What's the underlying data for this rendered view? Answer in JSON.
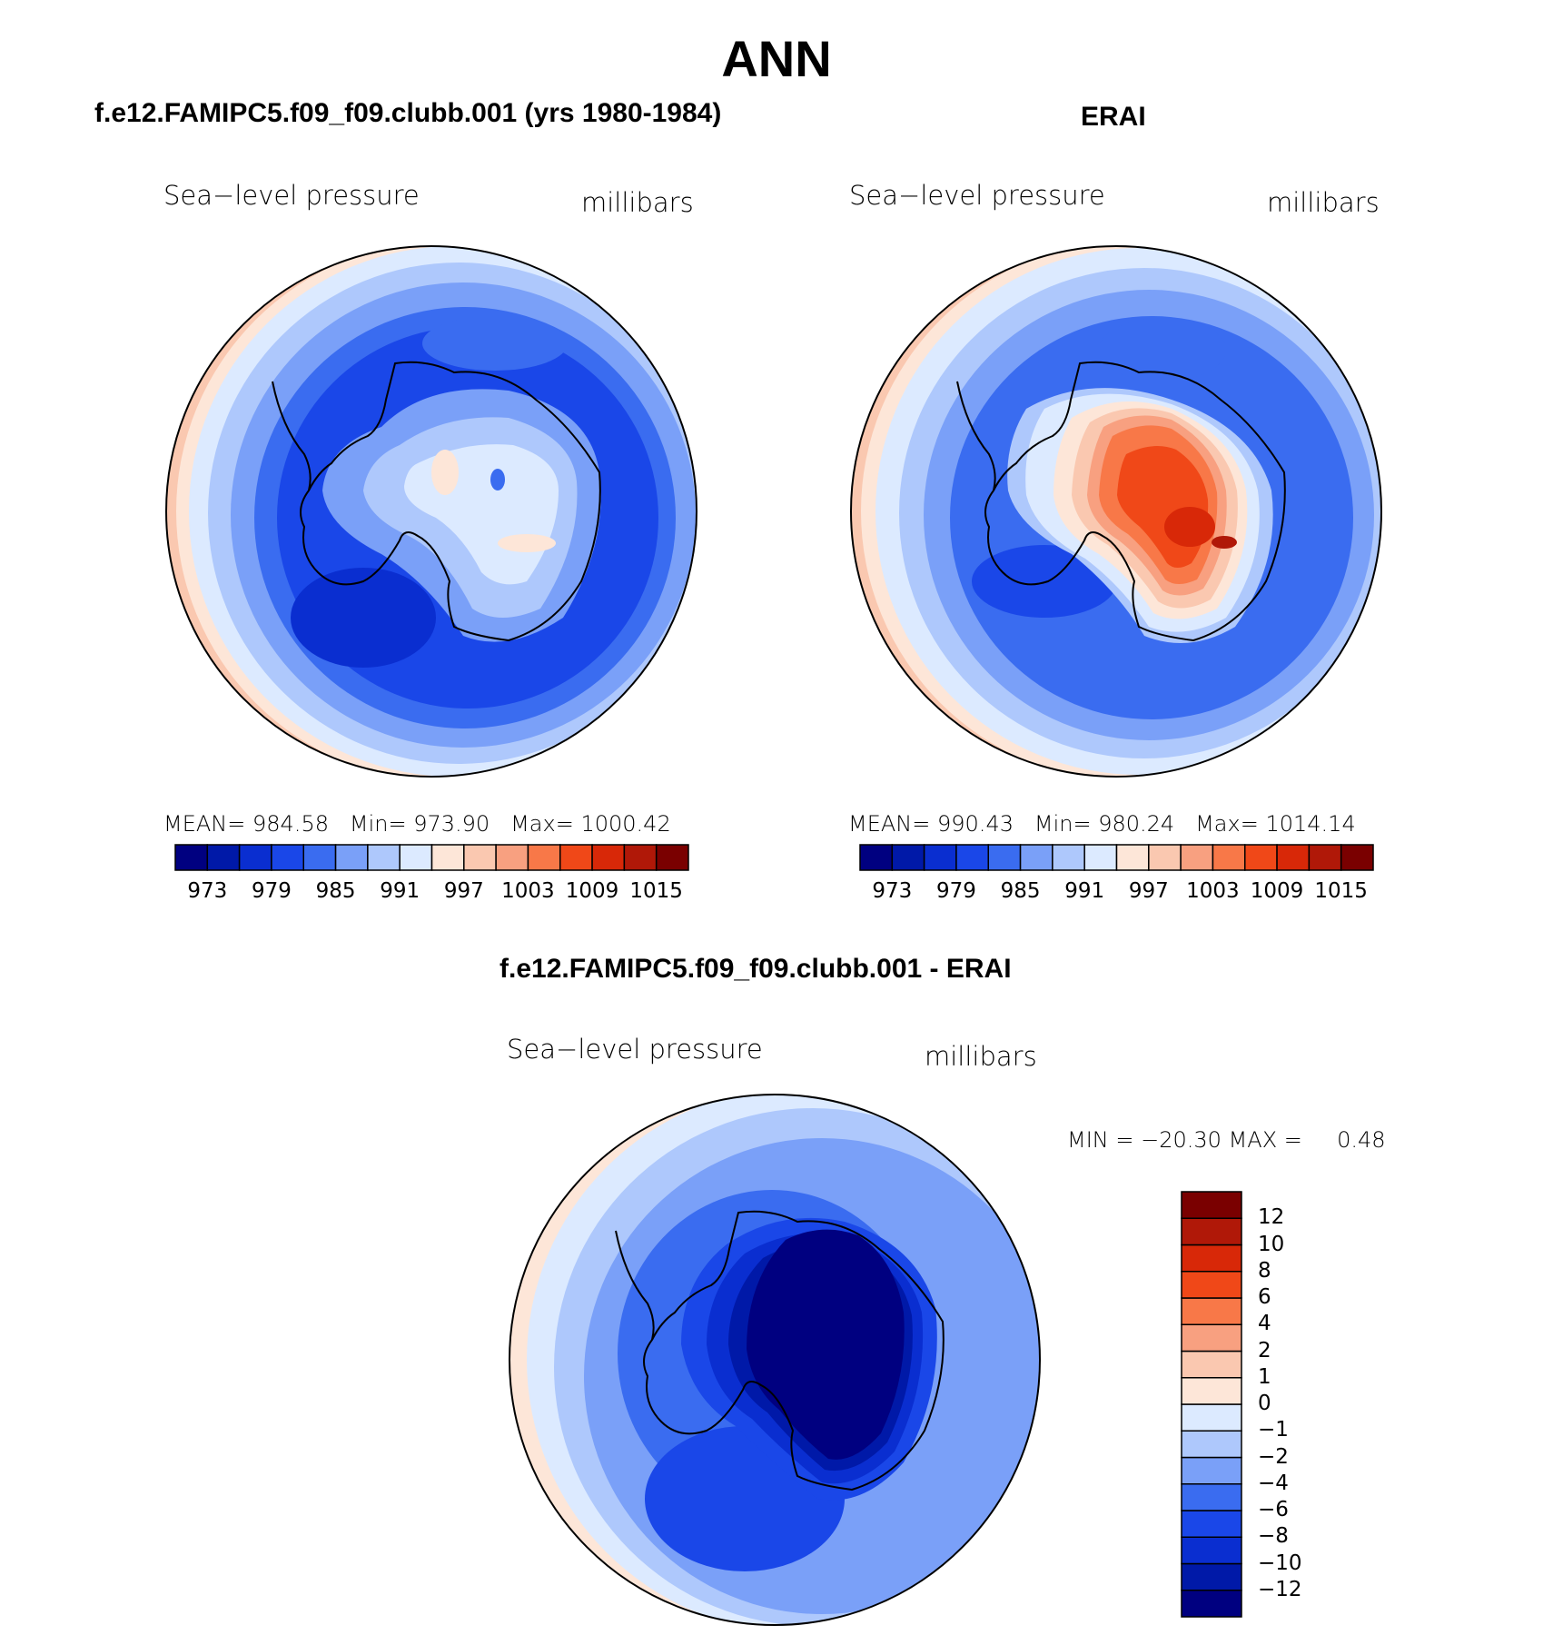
{
  "title": "ANN",
  "panels": [
    {
      "title": "f.e12.FAMIPC5.f09_f09.clubb.001 (yrs 1980-1984)",
      "variable": "Sea−level pressure",
      "units": "millibars",
      "stats": {
        "mean_label": "MEAN=",
        "mean": "984.58",
        "min_label": "Min=",
        "min": "973.90",
        "max_label": "Max=",
        "max": "1000.42"
      }
    },
    {
      "title": "ERAI",
      "variable": "Sea−level pressure",
      "units": "millibars",
      "stats": {
        "mean_label": "MEAN=",
        "mean": "990.43",
        "min_label": "Min=",
        "min": "980.24",
        "max_label": "Max=",
        "max": "1014.14"
      }
    },
    {
      "title": "f.e12.FAMIPC5.f09_f09.clubb.001 - ERAI",
      "variable": "Sea−level pressure",
      "units": "millibars",
      "stats": {
        "min_label": "MIN =",
        "min": "−20.30",
        "max_label": "MAX =",
        "max": "0.48"
      }
    }
  ],
  "colorbar_abs": {
    "colors": [
      "#000080",
      "#0019a8",
      "#0a2ed0",
      "#1a47e8",
      "#3a6cf0",
      "#7aa0f8",
      "#aec8fc",
      "#dceaff",
      "#fde6d8",
      "#fac8b0",
      "#f8a080",
      "#f87848",
      "#f04818",
      "#d82808",
      "#b01808",
      "#7a0000"
    ],
    "tick_labels": [
      "973",
      "979",
      "985",
      "991",
      "997",
      "1003",
      "1009",
      "1015"
    ]
  },
  "colorbar_diff": {
    "colors": [
      "#000080",
      "#0019a8",
      "#0a2ed0",
      "#1a47e8",
      "#3a6cf0",
      "#7aa0f8",
      "#aec8fc",
      "#dceaff",
      "#fde6d8",
      "#fac8b0",
      "#f8a080",
      "#f87848",
      "#f04818",
      "#d82808",
      "#b01808",
      "#7a0000"
    ],
    "tick_labels": [
      "−12",
      "−10",
      "−8",
      "−6",
      "−4",
      "−2",
      "−1",
      "0",
      "1",
      "2",
      "4",
      "6",
      "8",
      "10",
      "12"
    ]
  }
}
